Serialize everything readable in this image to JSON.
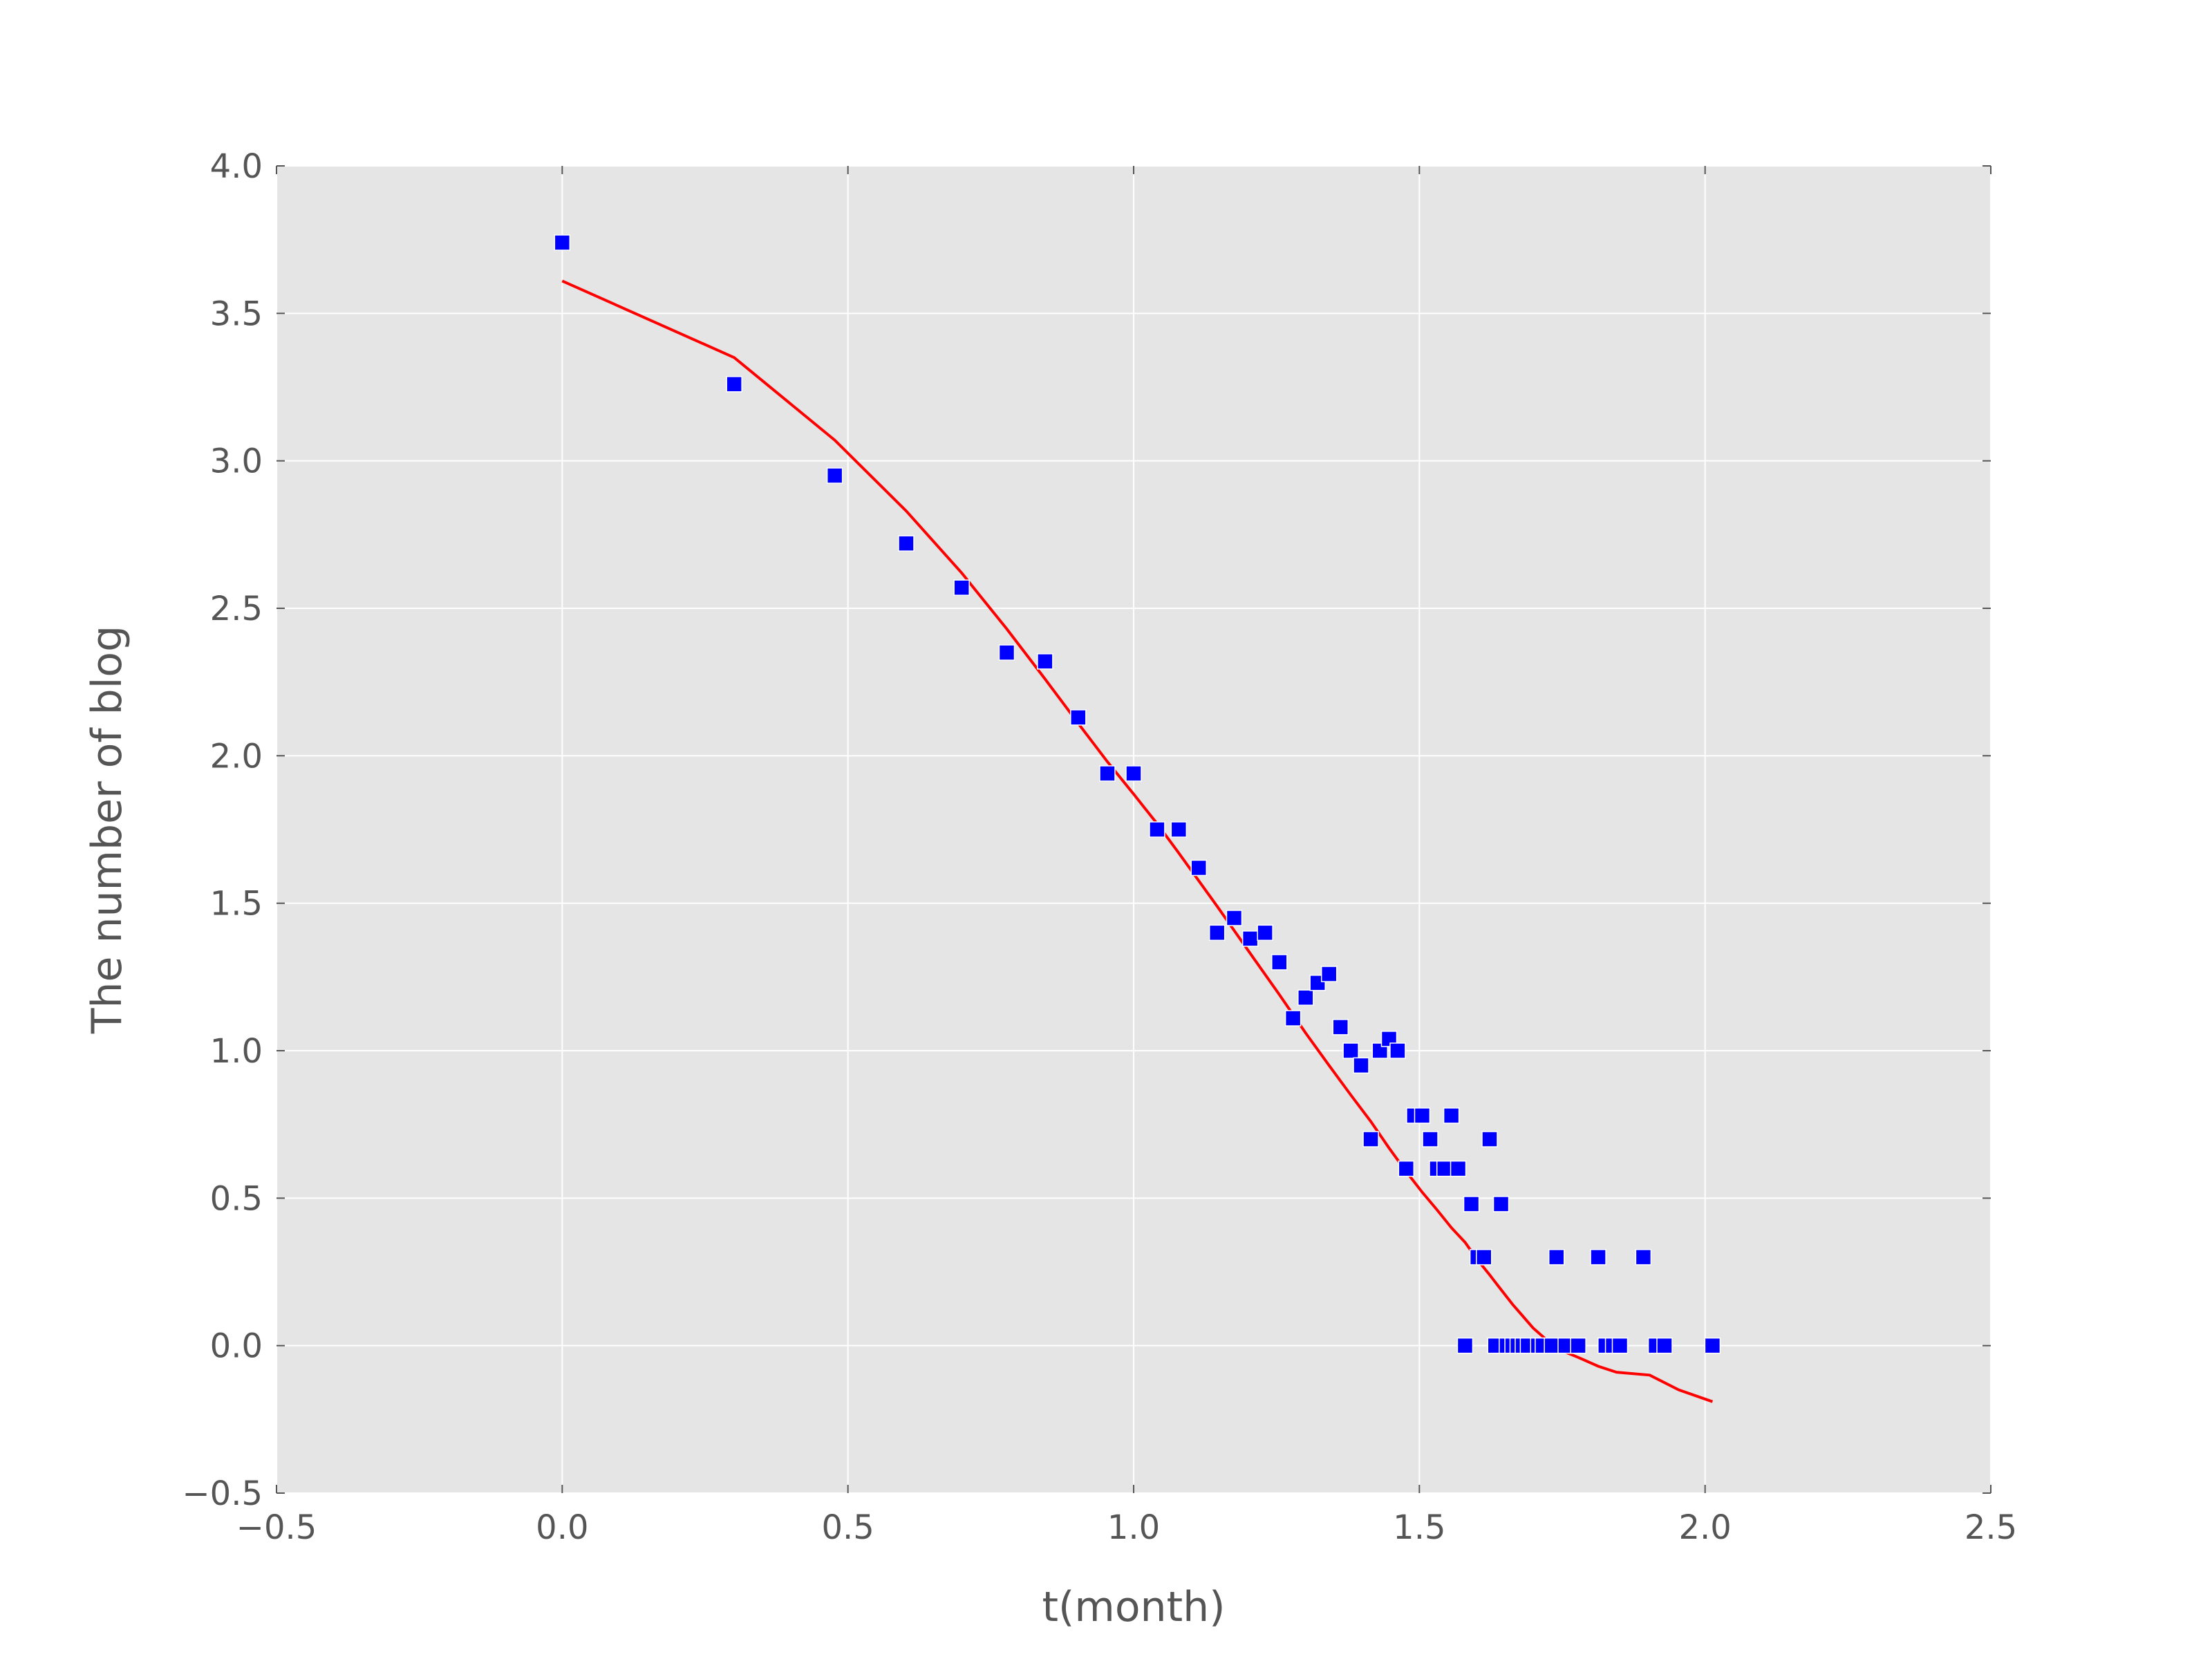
{
  "chart_data": {
    "type": "scatter",
    "xlabel": "t(month)",
    "ylabel": "The number of blog",
    "xlim": [
      -0.5,
      2.5
    ],
    "ylim": [
      -0.5,
      4.0
    ],
    "xticks": [
      "−0.5",
      "0.0",
      "0.5",
      "1.0",
      "1.5",
      "2.0",
      "2.5"
    ],
    "yticks": [
      "−0.5",
      "0.0",
      "0.5",
      "1.0",
      "1.5",
      "2.0",
      "2.5",
      "3.0",
      "3.5",
      "4.0"
    ],
    "grid": true,
    "background_color": "#e5e5e5",
    "series": [
      {
        "kind": "scatter",
        "marker": "square",
        "color": "#0000ff",
        "points": [
          [
            0.0,
            3.74
          ],
          [
            0.301,
            3.26
          ],
          [
            0.477,
            2.95
          ],
          [
            0.602,
            2.72
          ],
          [
            0.699,
            2.57
          ],
          [
            0.778,
            2.35
          ],
          [
            0.845,
            2.32
          ],
          [
            0.903,
            2.13
          ],
          [
            0.954,
            1.94
          ],
          [
            1.0,
            1.94
          ],
          [
            1.041,
            1.75
          ],
          [
            1.079,
            1.75
          ],
          [
            1.114,
            1.62
          ],
          [
            1.146,
            1.4
          ],
          [
            1.176,
            1.45
          ],
          [
            1.204,
            1.38
          ],
          [
            1.23,
            1.4
          ],
          [
            1.255,
            1.3
          ],
          [
            1.279,
            1.11
          ],
          [
            1.301,
            1.18
          ],
          [
            1.322,
            1.23
          ],
          [
            1.342,
            1.26
          ],
          [
            1.362,
            1.08
          ],
          [
            1.38,
            1.0
          ],
          [
            1.398,
            0.95
          ],
          [
            1.415,
            0.7
          ],
          [
            1.431,
            1.0
          ],
          [
            1.447,
            1.04
          ],
          [
            1.462,
            1.0
          ],
          [
            1.477,
            0.6
          ],
          [
            1.491,
            0.78
          ],
          [
            1.505,
            0.78
          ],
          [
            1.519,
            0.7
          ],
          [
            1.531,
            0.6
          ],
          [
            1.544,
            0.6
          ],
          [
            1.556,
            0.78
          ],
          [
            1.568,
            0.6
          ],
          [
            1.58,
            0.0
          ],
          [
            1.591,
            0.48
          ],
          [
            1.602,
            0.3
          ],
          [
            1.613,
            0.3
          ],
          [
            1.623,
            0.7
          ],
          [
            1.633,
            0.0
          ],
          [
            1.643,
            0.48
          ],
          [
            1.653,
            0.0
          ],
          [
            1.663,
            0.0
          ],
          [
            1.672,
            0.0
          ],
          [
            1.681,
            0.0
          ],
          [
            1.69,
            0.0
          ],
          [
            1.708,
            0.0
          ],
          [
            1.716,
            0.0
          ],
          [
            1.732,
            0.0
          ],
          [
            1.74,
            0.3
          ],
          [
            1.756,
            0.0
          ],
          [
            1.778,
            0.0
          ],
          [
            1.813,
            0.3
          ],
          [
            1.826,
            0.0
          ],
          [
            1.839,
            0.0
          ],
          [
            1.851,
            0.0
          ],
          [
            1.892,
            0.3
          ],
          [
            1.914,
            0.0
          ],
          [
            1.929,
            0.0
          ],
          [
            2.013,
            0.0
          ]
        ]
      },
      {
        "kind": "line",
        "color": "#ff0000",
        "points": [
          [
            0.0,
            3.61
          ],
          [
            0.301,
            3.35
          ],
          [
            0.477,
            3.07
          ],
          [
            0.602,
            2.83
          ],
          [
            0.699,
            2.62
          ],
          [
            0.778,
            2.43
          ],
          [
            0.845,
            2.26
          ],
          [
            0.903,
            2.11
          ],
          [
            0.954,
            1.98
          ],
          [
            1.0,
            1.87
          ],
          [
            1.041,
            1.77
          ],
          [
            1.079,
            1.67
          ],
          [
            1.146,
            1.49
          ],
          [
            1.204,
            1.33
          ],
          [
            1.255,
            1.19
          ],
          [
            1.301,
            1.06
          ],
          [
            1.342,
            0.95
          ],
          [
            1.38,
            0.85
          ],
          [
            1.415,
            0.76
          ],
          [
            1.447,
            0.67
          ],
          [
            1.477,
            0.59
          ],
          [
            1.505,
            0.52
          ],
          [
            1.531,
            0.46
          ],
          [
            1.556,
            0.4
          ],
          [
            1.58,
            0.35
          ],
          [
            1.602,
            0.29
          ],
          [
            1.623,
            0.24
          ],
          [
            1.643,
            0.19
          ],
          [
            1.663,
            0.14
          ],
          [
            1.681,
            0.1
          ],
          [
            1.699,
            0.06
          ],
          [
            1.74,
            -0.01
          ],
          [
            1.778,
            -0.04
          ],
          [
            1.813,
            -0.07
          ],
          [
            1.845,
            -0.09
          ],
          [
            1.851,
            0.0
          ],
          [
            1.903,
            -0.1
          ],
          [
            1.954,
            -0.15
          ],
          [
            2.013,
            -0.19
          ]
        ]
      }
    ]
  }
}
